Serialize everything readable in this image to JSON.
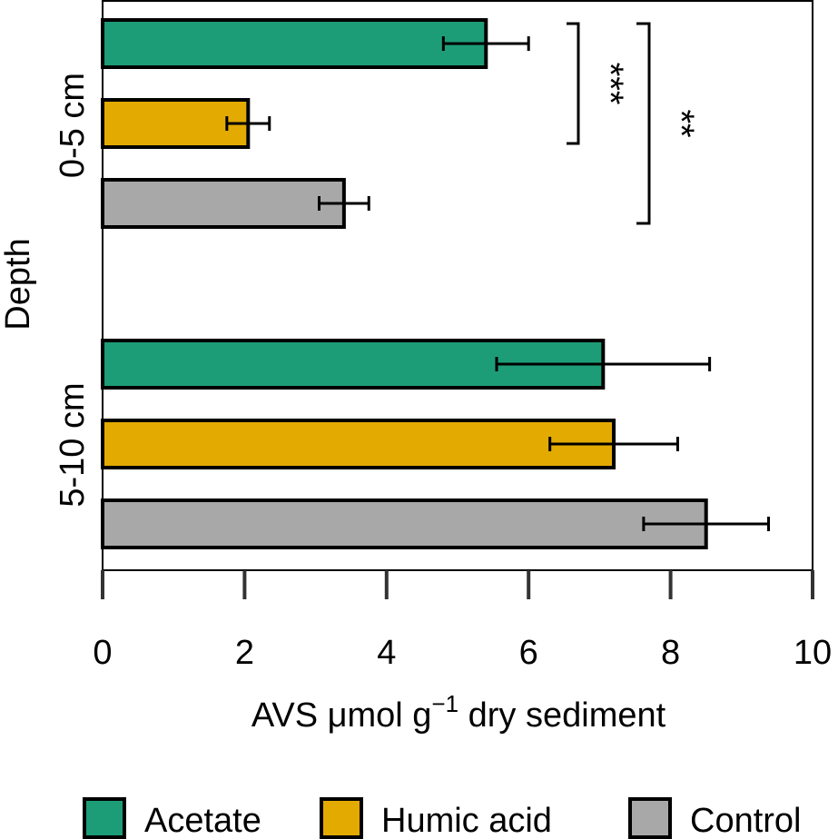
{
  "chart_data": {
    "type": "bar",
    "orientation": "horizontal",
    "xlabel_main": "AVS μmol g",
    "xlabel_sup": "−1",
    "xlabel_tail": " dry sediment",
    "ylabel": "Depth",
    "xlim": [
      0,
      10
    ],
    "xticks": [
      "0",
      "2",
      "4",
      "6",
      "8",
      "10"
    ],
    "grid": false,
    "legend_position": "bottom",
    "groups": [
      {
        "label": "0-5 cm",
        "bars": [
          {
            "series": "Acetate",
            "value": 5.4,
            "error": 0.6
          },
          {
            "series": "Humic acid",
            "value": 2.05,
            "error": 0.3
          },
          {
            "series": "Control",
            "value": 3.4,
            "error": 0.35
          }
        ]
      },
      {
        "label": "5-10 cm",
        "bars": [
          {
            "series": "Acetate",
            "value": 7.05,
            "error": 1.5
          },
          {
            "series": "Humic acid",
            "value": 7.2,
            "error": 0.9
          },
          {
            "series": "Control",
            "value": 8.5,
            "error": 0.88
          }
        ]
      }
    ],
    "series": [
      {
        "name": "Acetate",
        "color": "#1d9d77"
      },
      {
        "name": "Humic acid",
        "color": "#e3aa02"
      },
      {
        "name": "Control",
        "color": "#a8a8a8"
      }
    ],
    "significance": [
      {
        "group": "0-5 cm",
        "from": "Acetate",
        "to": "Humic acid",
        "label": "***"
      },
      {
        "group": "0-5 cm",
        "from": "Acetate",
        "to": "Control",
        "label": "**"
      }
    ]
  }
}
